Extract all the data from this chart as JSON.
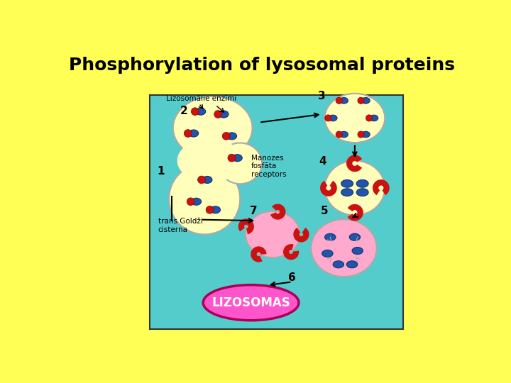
{
  "title": "Phosphorylation of lysosomal proteins",
  "title_fontsize": 18,
  "title_fontweight": "bold",
  "bg_color": "#FFFF55",
  "diagram_bg": "#55CCCC",
  "golgi_color": "#FFFFBB",
  "golgi_outline": "#AAAAAA",
  "vesicle_yellow_color": "#FFFFBB",
  "vesicle_pink_color": "#FFAACC",
  "lysosome_bg_color": "#FF55CC",
  "lysosome_body_color": "#FFBBDD",
  "blue_oval_color": "#2255AA",
  "red_circle_color": "#CC1111",
  "label_color": "#000000",
  "lizosomas_label": "LIZOSOMAS",
  "label1": "1",
  "label2": "2",
  "label3": "3",
  "label4": "4",
  "label5": "5",
  "label6": "6",
  "label7": "7",
  "label_lizenzimi": "Lizosomālie enzīmi",
  "label_manozes": "Manozes\nfosfāta\nreceptors",
  "label_trans": "trans Goldži\ncisterna"
}
